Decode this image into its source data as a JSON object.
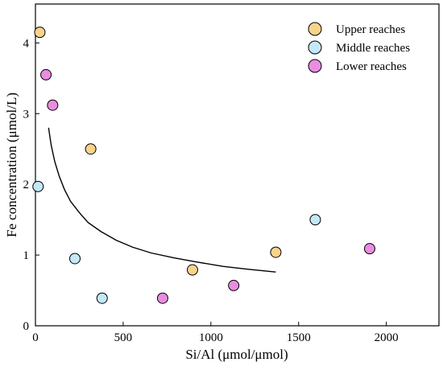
{
  "chart_data": {
    "type": "scatter",
    "xlabel": "Si/Al (μmol/μmol)",
    "ylabel": "Fe concentration (μmol/L)",
    "xlim": [
      0,
      2300
    ],
    "ylim": [
      0,
      4.55
    ],
    "xticks": [
      0,
      500,
      1000,
      1500,
      2000
    ],
    "yticks": [
      0,
      1,
      2,
      3,
      4
    ],
    "grid": false,
    "legend_position": "top-right",
    "series": [
      {
        "name": "Upper reaches",
        "color": "#f7d38c",
        "points": [
          {
            "x": 25,
            "y": 4.15
          },
          {
            "x": 315,
            "y": 2.5
          },
          {
            "x": 895,
            "y": 0.79
          },
          {
            "x": 1370,
            "y": 1.04
          }
        ]
      },
      {
        "name": "Middle reaches",
        "color": "#c4e8f7",
        "points": [
          {
            "x": 15,
            "y": 1.97
          },
          {
            "x": 225,
            "y": 0.95
          },
          {
            "x": 380,
            "y": 0.39
          },
          {
            "x": 1595,
            "y": 1.5
          }
        ]
      },
      {
        "name": "Lower reaches",
        "color": "#e98de0",
        "points": [
          {
            "x": 60,
            "y": 3.55
          },
          {
            "x": 98,
            "y": 3.12
          },
          {
            "x": 725,
            "y": 0.39
          },
          {
            "x": 1130,
            "y": 0.57
          },
          {
            "x": 1905,
            "y": 1.09
          }
        ]
      }
    ],
    "fit_curve": {
      "color": "#000000",
      "points": [
        {
          "x": 75,
          "y": 2.8
        },
        {
          "x": 90,
          "y": 2.55
        },
        {
          "x": 110,
          "y": 2.32
        },
        {
          "x": 135,
          "y": 2.12
        },
        {
          "x": 165,
          "y": 1.93
        },
        {
          "x": 200,
          "y": 1.76
        },
        {
          "x": 250,
          "y": 1.6
        },
        {
          "x": 300,
          "y": 1.46
        },
        {
          "x": 375,
          "y": 1.33
        },
        {
          "x": 460,
          "y": 1.21
        },
        {
          "x": 555,
          "y": 1.11
        },
        {
          "x": 660,
          "y": 1.03
        },
        {
          "x": 790,
          "y": 0.96
        },
        {
          "x": 925,
          "y": 0.9
        },
        {
          "x": 1070,
          "y": 0.84
        },
        {
          "x": 1210,
          "y": 0.8
        },
        {
          "x": 1370,
          "y": 0.76
        }
      ]
    }
  }
}
